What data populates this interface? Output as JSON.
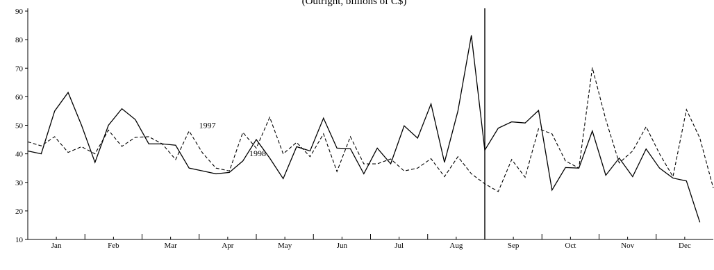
{
  "chart_data": {
    "type": "line",
    "title": "(Outright, billions of C$)",
    "xlabel": "",
    "ylabel": "",
    "ylim": [
      10,
      90
    ],
    "yticks": [
      10,
      20,
      30,
      40,
      50,
      60,
      70,
      80,
      90
    ],
    "months": [
      "Jan",
      "Feb",
      "Mar",
      "Apr",
      "May",
      "Jun",
      "Jul",
      "Aug",
      "Sep",
      "Oct",
      "Nov",
      "Dec"
    ],
    "weeks_per_year": 52,
    "grid": false,
    "legend": "none",
    "event_marker_week": 34,
    "series": [
      {
        "name": "1997",
        "style": "dashed",
        "color": "#000000",
        "values": [
          44.2,
          42.8,
          46.0,
          40.5,
          42.5,
          40.0,
          48.3,
          42.6,
          45.8,
          46.0,
          43.5,
          38.0,
          48.0,
          40.3,
          35.0,
          34.0,
          47.5,
          42.0,
          52.8,
          40.0,
          44.0,
          39.0,
          47.0,
          33.8,
          46.0,
          36.5,
          36.5,
          38.2,
          34.0,
          35.0,
          38.3,
          32.0,
          39.0,
          33.0,
          29.5,
          26.8,
          38.0,
          31.8,
          48.8,
          47.0,
          37.5,
          35.0,
          70.2,
          52.0,
          36.8,
          41.0,
          49.5,
          40.0,
          32.0,
          55.5,
          45.5,
          28.0
        ]
      },
      {
        "name": "1998",
        "style": "solid",
        "color": "#000000",
        "values": [
          41.0,
          40.0,
          55.0,
          61.5,
          50.0,
          37.0,
          50.0,
          55.8,
          52.0,
          43.5,
          43.5,
          43.0,
          35.0,
          34.0,
          33.0,
          33.5,
          37.5,
          45.0,
          38.5,
          31.3,
          42.5,
          41.0,
          52.5,
          42.0,
          41.8,
          33.0,
          42.0,
          36.5,
          49.8,
          45.5,
          57.5,
          37.0,
          55.0,
          81.5,
          41.3,
          49.0,
          51.2,
          50.8,
          55.2,
          27.3,
          35.2,
          35.0,
          48.0,
          32.5,
          38.5,
          32.0,
          41.7,
          35.0,
          31.5,
          30.5,
          16.0
        ]
      }
    ],
    "annotations": [
      {
        "text": "1997",
        "series": "1997",
        "week": 13
      },
      {
        "text": "1998",
        "series": "1998",
        "week": 17
      }
    ]
  }
}
